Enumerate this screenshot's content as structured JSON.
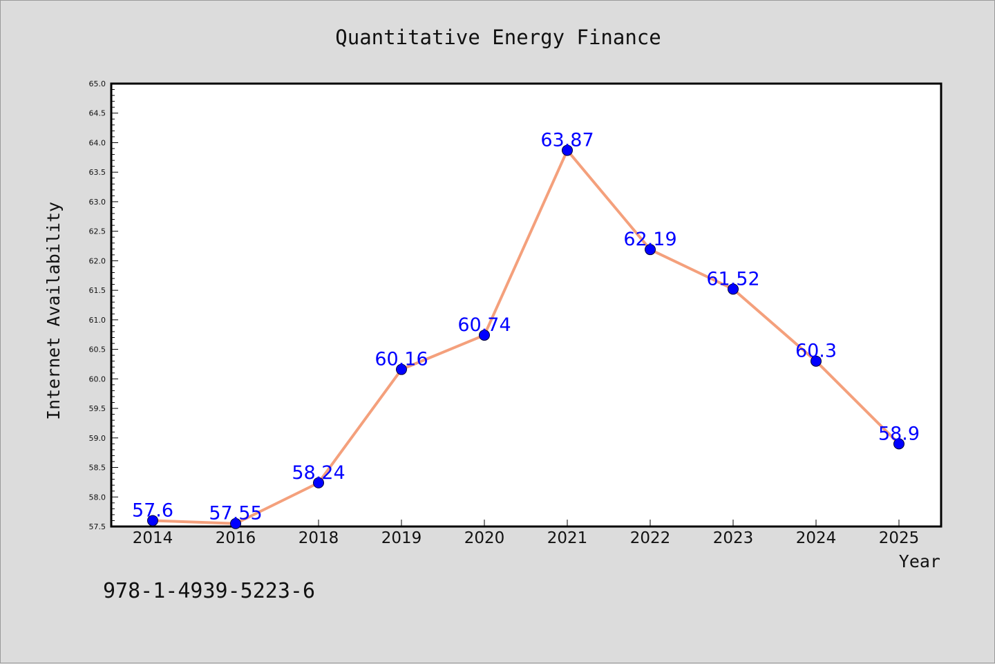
{
  "chart_data": {
    "type": "line",
    "title": "Quantitative Energy Finance",
    "xlabel": "Year",
    "ylabel": "Internet Availability",
    "categories": [
      "2014",
      "2016",
      "2018",
      "2019",
      "2020",
      "2021",
      "2022",
      "2023",
      "2024",
      "2025"
    ],
    "series": [
      {
        "values": [
          57.6,
          57.55,
          58.24,
          60.16,
          60.74,
          63.87,
          62.19,
          61.52,
          60.3,
          58.9
        ],
        "labels": [
          "57.6",
          "57.55",
          "58.24",
          "60.16",
          "60.74",
          "63.87",
          "62.19",
          "61.52",
          "60.3",
          "58.9"
        ]
      }
    ],
    "ylim": [
      57.5,
      65.0
    ],
    "yticks": [
      "57.5",
      "58.0",
      "58.5",
      "59.0",
      "59.5",
      "60.0",
      "60.5",
      "61.0",
      "61.5",
      "62.0",
      "62.5",
      "63.0",
      "63.5",
      "64.0",
      "64.5",
      "65.0"
    ],
    "grid": false,
    "legend": "none",
    "colors": {
      "line": "#f4a07c",
      "marker": "#0000ff",
      "data_label": "#0000ff",
      "background": "#dcdcdc",
      "plot_background": "#ffffff"
    }
  },
  "footer": {
    "isbn": "978-1-4939-5223-6"
  }
}
